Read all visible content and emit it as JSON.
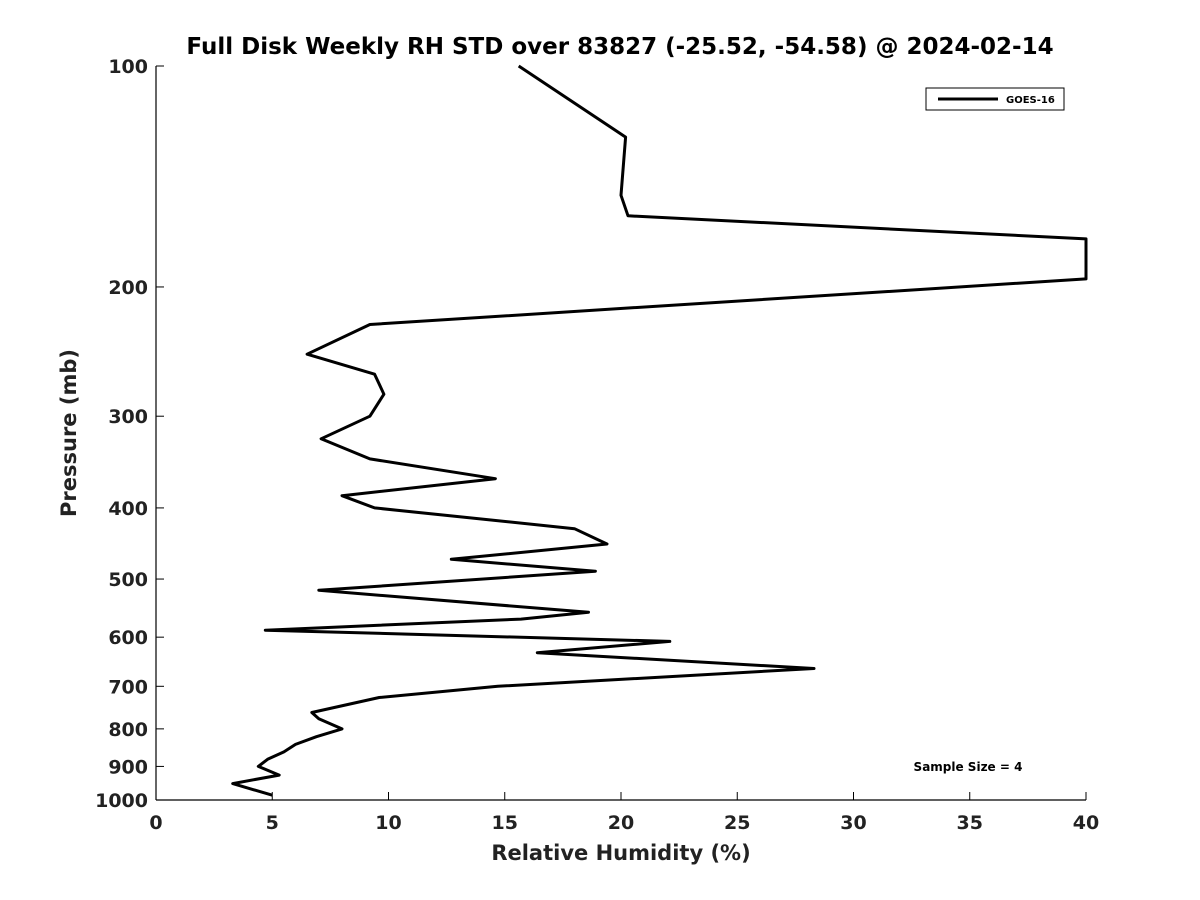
{
  "chart_data": {
    "type": "line",
    "title": "Full Disk Weekly RH STD over 83827 (-25.52, -54.58) @ 2024-02-14",
    "xlabel": "Relative Humidity (%)",
    "ylabel": "Pressure (mb)",
    "xlim": [
      0,
      40
    ],
    "ylim": [
      100,
      1000
    ],
    "yscale": "log",
    "yreversed": true,
    "grid": false,
    "legend_position": "top-right",
    "xticks": [
      0,
      5,
      10,
      15,
      20,
      25,
      30,
      35,
      40
    ],
    "yticks": [
      100,
      200,
      300,
      400,
      500,
      600,
      700,
      800,
      900,
      1000
    ],
    "annotation": "Sample Size = 4",
    "series": [
      {
        "name": "GOES-16",
        "color": "#000000",
        "points": [
          [
            15.6,
            100
          ],
          [
            20.2,
            125
          ],
          [
            20.0,
            150
          ],
          [
            20.3,
            160
          ],
          [
            40.0,
            172
          ],
          [
            40.0,
            195
          ],
          [
            9.2,
            225
          ],
          [
            6.5,
            247
          ],
          [
            9.4,
            263
          ],
          [
            9.8,
            280
          ],
          [
            9.2,
            300
          ],
          [
            7.1,
            322
          ],
          [
            9.2,
            343
          ],
          [
            14.6,
            365
          ],
          [
            8.0,
            385
          ],
          [
            9.4,
            400
          ],
          [
            18.0,
            427
          ],
          [
            19.4,
            448
          ],
          [
            12.7,
            470
          ],
          [
            18.9,
            488
          ],
          [
            7.0,
            518
          ],
          [
            18.6,
            555
          ],
          [
            15.7,
            567
          ],
          [
            4.7,
            587
          ],
          [
            22.1,
            608
          ],
          [
            16.4,
            630
          ],
          [
            28.3,
            662
          ],
          [
            14.7,
            700
          ],
          [
            9.6,
            725
          ],
          [
            6.7,
            760
          ],
          [
            7.0,
            775
          ],
          [
            8.0,
            800
          ],
          [
            6.9,
            820
          ],
          [
            6.0,
            840
          ],
          [
            5.5,
            860
          ],
          [
            4.8,
            880
          ],
          [
            4.4,
            900
          ],
          [
            5.3,
            925
          ],
          [
            3.3,
            950
          ],
          [
            5.0,
            985
          ]
        ]
      }
    ]
  }
}
